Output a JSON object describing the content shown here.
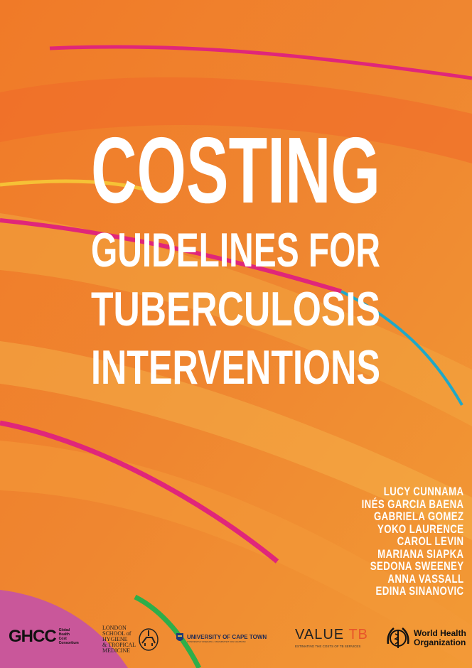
{
  "cover": {
    "title": "COSTING",
    "subtitle_lines": [
      "GUIDELINES FOR",
      "TUBERCULOSIS",
      "INTERVENTIONS"
    ],
    "authors": [
      "LUCY CUNNAMA",
      "INÉS GARCIA BAENA",
      "GABRIELA GOMEZ",
      "YOKO LAURENCE",
      "CAROL LEVIN",
      "MARIANA SIAPKA",
      "SEDONA SWEENEY",
      "ANNA VASSALL",
      "EDINA SINANOVIC"
    ],
    "colors": {
      "background": "#ef8a2a",
      "pink": "#e0267a",
      "teal": "#1fa8c8",
      "green": "#2eae4a",
      "text": "#ffffff"
    }
  },
  "logos": {
    "ghcc": {
      "mark": "GHCC",
      "text": [
        "Global",
        "Health",
        "Cost",
        "Consortium"
      ]
    },
    "lshtm": {
      "text": [
        "LONDON",
        "SCHOOL of",
        "HYGIENE",
        "& TROPICAL",
        "MEDICINE"
      ]
    },
    "uct": {
      "name": "UNIVERSITY OF CAPE TOWN",
      "sub": "IYUNIVESITHI YASEKAPA • UNIVERSITEIT VAN KAAPSTAD"
    },
    "valuetb": {
      "value": "VALUE",
      "tb": "TB",
      "tagline": "ESTIMATING THE COSTS OF TB SERVICES"
    },
    "who": {
      "line1": "World Health",
      "line2": "Organization"
    }
  }
}
